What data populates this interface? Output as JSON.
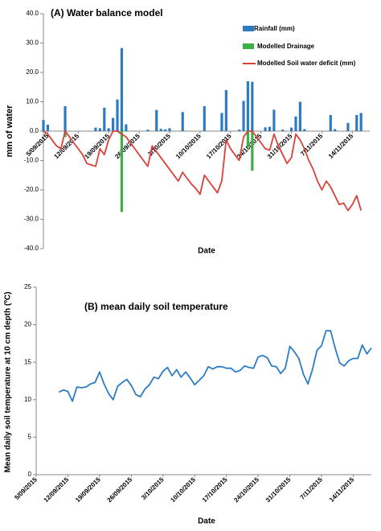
{
  "chart_data": [
    {
      "type": "combo",
      "title": "(A)  Water balance model",
      "x_label": "Date",
      "y_label": "mm of water",
      "xlim": [
        "2015-09-04",
        "2015-11-18"
      ],
      "ylim": [
        -40,
        40
      ],
      "yticks": [
        {
          "value": 40,
          "label": "40.0"
        },
        {
          "value": 30,
          "label": "30.0"
        },
        {
          "value": 20,
          "label": "20.0"
        },
        {
          "value": 10,
          "label": "10.0"
        },
        {
          "value": 0,
          "label": "0.0"
        },
        {
          "value": -10,
          "label": "-10.0"
        },
        {
          "value": -20,
          "label": "-20.0"
        },
        {
          "value": -30,
          "label": "-30.0"
        },
        {
          "value": -40,
          "label": "-40.0"
        }
      ],
      "xticks": [
        {
          "value": "2015-09-05",
          "label": "5/09/2015"
        },
        {
          "value": "2015-09-12",
          "label": "12/09/2015"
        },
        {
          "value": "2015-09-19",
          "label": "19/09/2015"
        },
        {
          "value": "2015-09-26",
          "label": "26/09/2015"
        },
        {
          "value": "2015-10-03",
          "label": "3/10/2015"
        },
        {
          "value": "2015-10-10",
          "label": "10/10/2015"
        },
        {
          "value": "2015-10-17",
          "label": "17/10/2015"
        },
        {
          "value": "2015-10-24",
          "label": "24/10/2015"
        },
        {
          "value": "2015-10-31",
          "label": "31/10/2015"
        },
        {
          "value": "2015-11-07",
          "label": "7/11/2015"
        },
        {
          "value": "2015-11-14",
          "label": "14/11/2015"
        }
      ],
      "series": [
        {
          "name": "Rainfall (mm)",
          "type": "bar",
          "color": "#2f7bbf",
          "x": [
            "2015-09-04",
            "2015-09-05",
            "2015-09-09",
            "2015-09-16",
            "2015-09-17",
            "2015-09-18",
            "2015-09-19",
            "2015-09-20",
            "2015-09-21",
            "2015-09-22",
            "2015-09-23",
            "2015-09-28",
            "2015-09-30",
            "2015-10-01",
            "2015-10-02",
            "2015-10-03",
            "2015-10-06",
            "2015-10-11",
            "2015-10-15",
            "2015-10-16",
            "2015-10-19",
            "2015-10-20",
            "2015-10-21",
            "2015-10-22",
            "2015-10-25",
            "2015-10-26",
            "2015-10-27",
            "2015-10-29",
            "2015-10-31",
            "2015-11-01",
            "2015-11-02",
            "2015-11-03",
            "2015-11-09",
            "2015-11-10",
            "2015-11-13",
            "2015-11-15",
            "2015-11-16"
          ],
          "values": [
            3.8,
            2.2,
            8.5,
            1.2,
            1,
            8,
            1,
            4.5,
            10.8,
            28.3,
            2.3,
            0.5,
            7.2,
            0.8,
            0.6,
            1,
            6.5,
            8.5,
            6.2,
            14,
            0.5,
            10.3,
            17,
            16.8,
            1.3,
            1.5,
            7.3,
            0.5,
            1.2,
            5,
            10,
            0.7,
            5.5,
            0.7,
            2.8,
            5.5,
            6.2
          ]
        },
        {
          "name": "Modelled Drainage",
          "type": "bar",
          "color": "#3cb043",
          "x": [
            "2015-09-09",
            "2015-09-22",
            "2015-10-21",
            "2015-10-22"
          ],
          "values": [
            -2,
            -27.5,
            -5.5,
            -13.5
          ]
        },
        {
          "name": "Modelled Soil water deficit (mm)",
          "type": "line",
          "color": "#d9413a",
          "x": [
            "2015-09-04",
            "2015-09-05",
            "2015-09-06",
            "2015-09-07",
            "2015-09-08",
            "2015-09-09",
            "2015-09-10",
            "2015-09-11",
            "2015-09-12",
            "2015-09-13",
            "2015-09-14",
            "2015-09-15",
            "2015-09-16",
            "2015-09-17",
            "2015-09-18",
            "2015-09-19",
            "2015-09-20",
            "2015-09-21",
            "2015-09-22",
            "2015-09-23",
            "2015-09-24",
            "2015-09-25",
            "2015-09-26",
            "2015-09-27",
            "2015-09-28",
            "2015-09-29",
            "2015-09-30",
            "2015-10-01",
            "2015-10-02",
            "2015-10-03",
            "2015-10-04",
            "2015-10-05",
            "2015-10-06",
            "2015-10-07",
            "2015-10-08",
            "2015-10-09",
            "2015-10-10",
            "2015-10-11",
            "2015-10-12",
            "2015-10-13",
            "2015-10-14",
            "2015-10-15",
            "2015-10-16",
            "2015-10-17",
            "2015-10-18",
            "2015-10-19",
            "2015-10-20",
            "2015-10-21",
            "2015-10-22",
            "2015-10-23",
            "2015-10-24",
            "2015-10-25",
            "2015-10-26",
            "2015-10-27",
            "2015-10-28",
            "2015-10-29",
            "2015-10-30",
            "2015-10-31",
            "2015-11-01",
            "2015-11-02",
            "2015-11-03",
            "2015-11-04",
            "2015-11-05",
            "2015-11-06",
            "2015-11-07",
            "2015-11-08",
            "2015-11-09",
            "2015-11-10",
            "2015-11-11",
            "2015-11-12",
            "2015-11-13",
            "2015-11-14",
            "2015-11-15",
            "2015-11-16"
          ],
          "values": [
            0,
            -1,
            -3,
            -5,
            -6,
            0,
            -2,
            -4,
            -6,
            -8,
            -11,
            -11.5,
            -12,
            -6,
            -8,
            -3,
            0,
            0,
            -1,
            -2,
            -4,
            -6,
            -8,
            -10,
            -12,
            -5,
            -7,
            -9,
            -11,
            -13,
            -15,
            -17,
            -14,
            -16,
            -18,
            -19.5,
            -21.5,
            -15,
            -17,
            -19,
            -21,
            -17,
            -3,
            -6,
            -8,
            -10,
            -2,
            0,
            0,
            -2,
            -4,
            -6,
            -6.5,
            -1,
            -5,
            -8,
            -11,
            -9,
            -1,
            -3,
            -6,
            -10,
            -13,
            -17,
            -20,
            -17,
            -19,
            -22,
            -25,
            -24.5,
            -27,
            -25,
            -22,
            -27
          ]
        }
      ]
    },
    {
      "type": "line",
      "title": "(B)  mean daily soil temperature",
      "x_label": "Date",
      "y_label": "Mean daily soil temperature at 10 cm depth (ºC)",
      "xlim": [
        "2015-09-05",
        "2015-11-18"
      ],
      "ylim": [
        0,
        25
      ],
      "yticks": [
        0,
        5,
        10,
        15,
        20,
        25
      ],
      "xticks": [
        {
          "value": "2015-09-05",
          "label": "5/09/2015"
        },
        {
          "value": "2015-09-12",
          "label": "12/09/2015"
        },
        {
          "value": "2015-09-19",
          "label": "19/09/2015"
        },
        {
          "value": "2015-09-26",
          "label": "26/09/2015"
        },
        {
          "value": "2015-10-03",
          "label": "3/10/2015"
        },
        {
          "value": "2015-10-10",
          "label": "10/10/2015"
        },
        {
          "value": "2015-10-17",
          "label": "17/10/2015"
        },
        {
          "value": "2015-10-24",
          "label": "24/10/2015"
        },
        {
          "value": "2015-10-31",
          "label": "31/10/2015"
        },
        {
          "value": "2015-11-07",
          "label": "7/11/2015"
        },
        {
          "value": "2015-11-14",
          "label": "14/11/2015"
        }
      ],
      "series": [
        {
          "type": "line",
          "color": "#2b7cc4",
          "x": [
            "2015-09-10",
            "2015-09-11",
            "2015-09-12",
            "2015-09-13",
            "2015-09-14",
            "2015-09-15",
            "2015-09-16",
            "2015-09-17",
            "2015-09-18",
            "2015-09-19",
            "2015-09-20",
            "2015-09-21",
            "2015-09-22",
            "2015-09-23",
            "2015-09-24",
            "2015-09-25",
            "2015-09-26",
            "2015-09-27",
            "2015-09-28",
            "2015-09-29",
            "2015-09-30",
            "2015-10-01",
            "2015-10-02",
            "2015-10-03",
            "2015-10-04",
            "2015-10-05",
            "2015-10-06",
            "2015-10-07",
            "2015-10-08",
            "2015-10-09",
            "2015-10-10",
            "2015-10-11",
            "2015-10-12",
            "2015-10-13",
            "2015-10-14",
            "2015-10-15",
            "2015-10-16",
            "2015-10-17",
            "2015-10-18",
            "2015-10-19",
            "2015-10-20",
            "2015-10-21",
            "2015-10-22",
            "2015-10-23",
            "2015-10-24",
            "2015-10-25",
            "2015-10-26",
            "2015-10-27",
            "2015-10-28",
            "2015-10-29",
            "2015-10-30",
            "2015-10-31",
            "2015-11-01",
            "2015-11-02",
            "2015-11-03",
            "2015-11-04",
            "2015-11-05",
            "2015-11-06",
            "2015-11-07",
            "2015-11-08",
            "2015-11-09",
            "2015-11-10",
            "2015-11-11",
            "2015-11-12",
            "2015-11-13",
            "2015-11-14",
            "2015-11-15",
            "2015-11-16",
            "2015-11-17",
            "2015-11-18"
          ],
          "values": [
            11,
            11.3,
            11.1,
            9.8,
            11.7,
            11.6,
            11.7,
            12.1,
            12.3,
            13.7,
            12.1,
            10.8,
            10,
            11.8,
            12.3,
            12.7,
            11.9,
            10.7,
            10.4,
            11.4,
            12,
            13,
            12.8,
            13.8,
            14.3,
            13.2,
            14,
            13,
            13.7,
            12.9,
            12,
            12.6,
            13.2,
            14.4,
            14.1,
            14.4,
            14.4,
            14.2,
            14.2,
            13.7,
            13.9,
            14.5,
            14.3,
            14.2,
            15.7,
            15.9,
            15.6,
            14.5,
            14.4,
            13.5,
            14.2,
            17.1,
            16.4,
            15.5,
            13.4,
            12.1,
            14,
            16.6,
            17.2,
            19.2,
            19.2,
            16.9,
            14.9,
            14.5,
            15.2,
            15.5,
            15.5,
            17.3,
            16.1,
            16.9
          ]
        }
      ]
    }
  ]
}
